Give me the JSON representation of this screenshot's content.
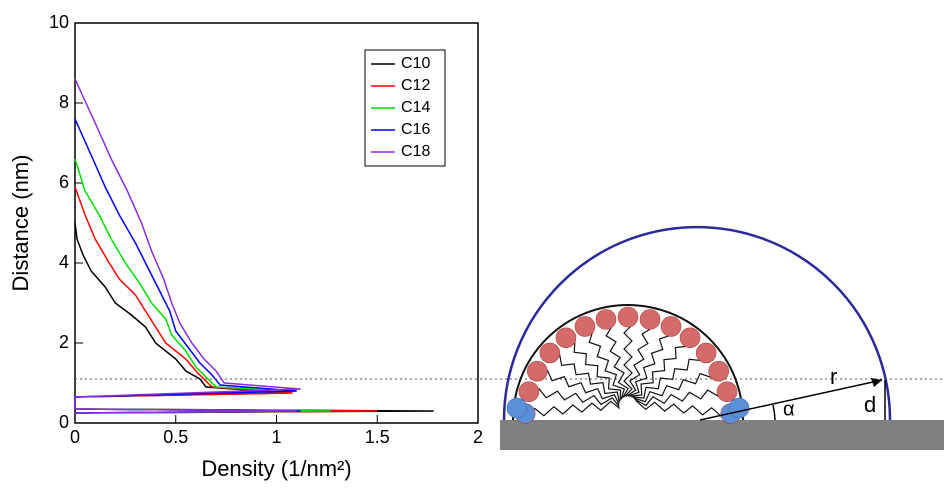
{
  "chart_data": {
    "type": "line",
    "xlabel": "Density (1/nm²)",
    "ylabel": "Distance (nm)",
    "xlim": [
      0,
      2
    ],
    "xticks": [
      0,
      0.5,
      1,
      1.5,
      2
    ],
    "ylim": [
      0,
      10
    ],
    "yticks": [
      0,
      2,
      4,
      6,
      8,
      10
    ],
    "legend": "upper right",
    "series": [
      {
        "name": "C10",
        "color": "#000000",
        "x": [
          0,
          1.78,
          0,
          0,
          1.05,
          0.65,
          0.62,
          0.55,
          0.5,
          0.4,
          0.35,
          0.28,
          0.2,
          0.15,
          0.08,
          0.04,
          0.01,
          0
        ],
        "values": [
          0.25,
          0.3,
          0.35,
          0.65,
          0.75,
          0.9,
          1.1,
          1.3,
          1.6,
          2.0,
          2.4,
          2.7,
          3.0,
          3.4,
          3.8,
          4.2,
          4.6,
          5.0
        ]
      },
      {
        "name": "C12",
        "color": "#ff0000",
        "x": [
          0,
          1.5,
          0,
          0,
          1.08,
          0.68,
          0.64,
          0.6,
          0.55,
          0.45,
          0.4,
          0.35,
          0.3,
          0.22,
          0.17,
          0.1,
          0.05,
          0
        ],
        "values": [
          0.25,
          0.3,
          0.35,
          0.65,
          0.75,
          0.9,
          1.1,
          1.3,
          1.6,
          2.0,
          2.4,
          2.8,
          3.2,
          3.6,
          4.0,
          4.6,
          5.2,
          5.9
        ]
      },
      {
        "name": "C14",
        "color": "#00dd00",
        "x": [
          0,
          1.27,
          0,
          0,
          1.1,
          0.7,
          0.66,
          0.6,
          0.55,
          0.48,
          0.45,
          0.38,
          0.32,
          0.25,
          0.18,
          0.12,
          0.05,
          0
        ],
        "values": [
          0.25,
          0.3,
          0.35,
          0.65,
          0.8,
          0.9,
          1.1,
          1.4,
          1.8,
          2.2,
          2.6,
          3.0,
          3.5,
          4.0,
          4.6,
          5.2,
          5.8,
          6.6
        ]
      },
      {
        "name": "C16",
        "color": "#0000ff",
        "x": [
          0,
          1.12,
          0,
          0,
          1.1,
          0.72,
          0.68,
          0.62,
          0.56,
          0.5,
          0.47,
          0.42,
          0.36,
          0.3,
          0.22,
          0.15,
          0.08,
          0
        ],
        "values": [
          0.25,
          0.3,
          0.35,
          0.65,
          0.8,
          0.95,
          1.2,
          1.5,
          1.9,
          2.3,
          2.8,
          3.3,
          3.9,
          4.5,
          5.2,
          5.9,
          6.7,
          7.6
        ]
      },
      {
        "name": "C18",
        "color": "#8a2be2",
        "x": [
          0,
          1.1,
          0,
          0,
          1.12,
          0.74,
          0.7,
          0.64,
          0.58,
          0.52,
          0.48,
          0.44,
          0.38,
          0.33,
          0.26,
          0.18,
          0.1,
          0
        ],
        "values": [
          0.25,
          0.3,
          0.35,
          0.65,
          0.85,
          1.0,
          1.3,
          1.6,
          2.0,
          2.5,
          3.0,
          3.6,
          4.3,
          5.0,
          5.8,
          6.6,
          7.5,
          8.6
        ]
      }
    ]
  },
  "diagram": {
    "radius_label": "r",
    "angle_label": "α",
    "distance_label": "d"
  }
}
